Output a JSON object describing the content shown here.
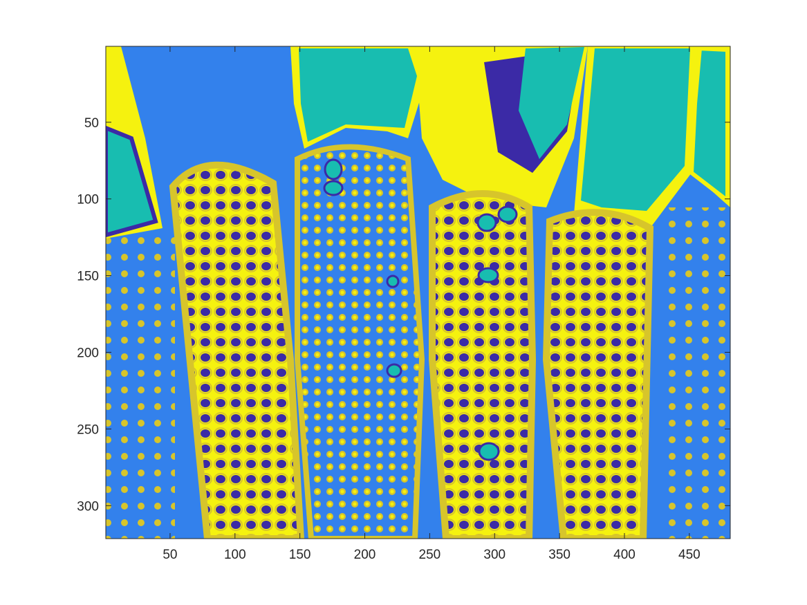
{
  "image": {
    "description_colors": {
      "background": "#3381ec",
      "dark_kernel": "#3b2aa6",
      "teal": "#18bdb0",
      "yellow": "#f5f20f",
      "olive_yellow": "#d7c52b"
    },
    "x_axis": {
      "range": [
        1,
        481
      ],
      "ticks": [
        50,
        100,
        150,
        200,
        250,
        300,
        350,
        400,
        450
      ]
    },
    "y_axis": {
      "range": [
        1,
        321
      ],
      "reversed": true,
      "ticks": [
        50,
        100,
        150,
        200,
        250,
        300
      ]
    }
  }
}
